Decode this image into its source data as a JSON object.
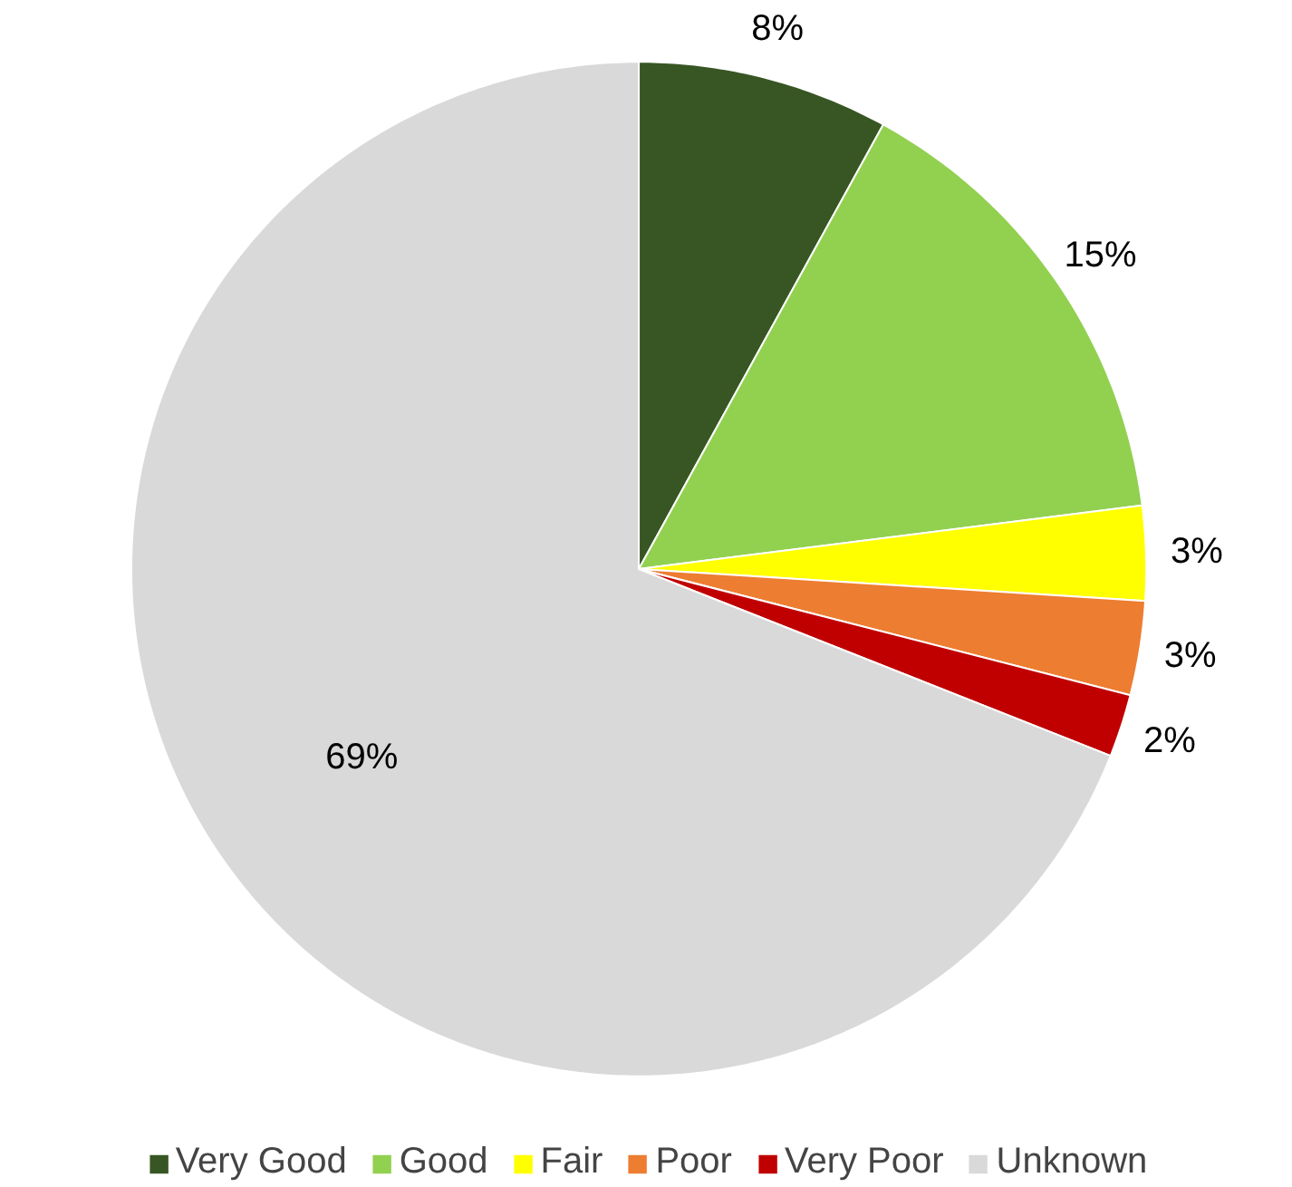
{
  "chart_data": {
    "type": "pie",
    "categories": [
      "Very Good",
      "Good",
      "Fair",
      "Poor",
      "Very Poor",
      "Unknown"
    ],
    "values": [
      8,
      15,
      3,
      3,
      2,
      69
    ],
    "colors": [
      "#375623",
      "#92d050",
      "#ffff00",
      "#ed7d31",
      "#c00000",
      "#d9d9d9"
    ],
    "value_labels": [
      "8%",
      "15%",
      "3%",
      "3%",
      "2%",
      "69%"
    ],
    "legend": "bottom"
  }
}
